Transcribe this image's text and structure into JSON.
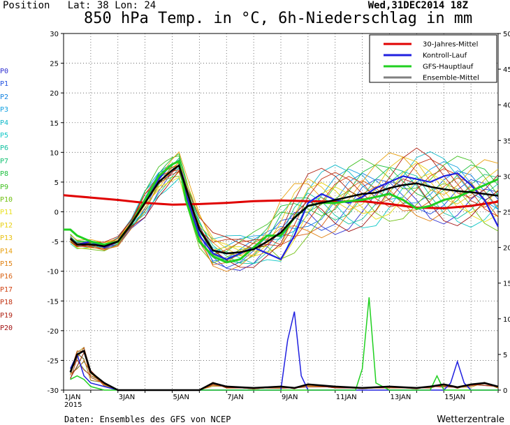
{
  "header": {
    "position_label": "Position",
    "lat_label": "Lat: 38",
    "lon_label": "Lon: 24",
    "datetime": "Wed,31DEC2014 18Z",
    "title": "850 hPa Temp. in °C, 6h-Niederschlag in mm"
  },
  "footer": {
    "source": "Daten: Ensembles des GFS von NCEP",
    "brand": "Wetterzentrale"
  },
  "members": [
    {
      "label": "P0",
      "color": "#3030d0"
    },
    {
      "label": "P1",
      "color": "#2050e0"
    },
    {
      "label": "P2",
      "color": "#1080e0"
    },
    {
      "label": "P3",
      "color": "#10a0e0"
    },
    {
      "label": "P4",
      "color": "#10b8c8"
    },
    {
      "label": "P5",
      "color": "#10c8c8"
    },
    {
      "label": "P6",
      "color": "#10c0a0"
    },
    {
      "label": "P7",
      "color": "#10c070"
    },
    {
      "label": "P8",
      "color": "#20c040"
    },
    {
      "label": "P9",
      "color": "#40c020"
    },
    {
      "label": "P10",
      "color": "#70c010"
    },
    {
      "label": "P11",
      "color": "#e8e020"
    },
    {
      "label": "P12",
      "color": "#e8d010"
    },
    {
      "label": "P13",
      "color": "#e8c010"
    },
    {
      "label": "P14",
      "color": "#e8a010"
    },
    {
      "label": "P15",
      "color": "#e08010"
    },
    {
      "label": "P16",
      "color": "#d86010"
    },
    {
      "label": "P17",
      "color": "#d04010"
    },
    {
      "label": "P18",
      "color": "#c03010"
    },
    {
      "label": "P19",
      "color": "#b02010"
    },
    {
      "label": "P20",
      "color": "#a01010"
    }
  ],
  "chart_data": {
    "type": "line",
    "title": "850 hPa Temp. in °C, 6h-Niederschlag in mm",
    "x_ticks": [
      "1JAN",
      "3JAN",
      "5JAN",
      "7JAN",
      "9JAN",
      "11JAN",
      "13JAN",
      "15JAN"
    ],
    "x_year_label": "2015",
    "x_range_days": [
      0,
      16
    ],
    "y_left_range": [
      -30,
      30
    ],
    "y_left_ticks": [
      30,
      25,
      20,
      15,
      10,
      5,
      0,
      -5,
      -10,
      -15,
      -20,
      -25,
      -30
    ],
    "y_right_range": [
      0,
      50
    ],
    "y_right_ticks": [
      50,
      45,
      40,
      35,
      30,
      25,
      20,
      15,
      10,
      5,
      0
    ],
    "grid": true,
    "legend_position": "top-right",
    "legend": [
      {
        "name": "30-Jahres-Mittel",
        "color": "#e00000"
      },
      {
        "name": "Kontroll-Lauf",
        "color": "#2020e0"
      },
      {
        "name": "GFS-Hauptlauf",
        "color": "#20d020"
      },
      {
        "name": "Ensemble-Mittel",
        "color": "#808080"
      }
    ],
    "climate_mean": {
      "x": [
        0,
        1,
        2,
        3,
        4,
        5,
        6,
        7,
        8,
        9,
        10,
        11,
        12,
        13,
        14,
        15,
        16
      ],
      "y": [
        2.8,
        2.4,
        2.0,
        1.5,
        1.2,
        1.3,
        1.5,
        1.8,
        1.9,
        1.8,
        1.7,
        1.8,
        1.3,
        0.7,
        0.6,
        1.0,
        1.7
      ]
    },
    "ensemble_mean": {
      "x": [
        0.25,
        0.5,
        1,
        1.5,
        2,
        2.5,
        3,
        3.5,
        3.75,
        4,
        4.25,
        4.5,
        5,
        5.5,
        6,
        6.5,
        7,
        7.5,
        8,
        8.5,
        9,
        9.5,
        10,
        10.5,
        11,
        11.5,
        12,
        12.5,
        13,
        13.5,
        14,
        14.5,
        15,
        15.5,
        16
      ],
      "y": [
        -4.5,
        -5.5,
        -5.5,
        -5.8,
        -5.0,
        -2.0,
        1.5,
        5.0,
        6.0,
        7.0,
        7.8,
        4.0,
        -3.0,
        -6.5,
        -7.0,
        -6.8,
        -6.3,
        -5.0,
        -3.5,
        -1.0,
        1.0,
        1.5,
        2.0,
        2.5,
        3.0,
        3.2,
        4.0,
        4.5,
        4.8,
        4.2,
        3.8,
        3.5,
        3.3,
        3.0,
        2.7
      ]
    },
    "control_run": {
      "x": [
        0.25,
        0.5,
        1,
        1.5,
        2,
        2.5,
        3,
        3.5,
        3.75,
        4,
        4.25,
        4.5,
        5,
        5.5,
        6,
        6.5,
        7,
        7.5,
        8,
        8.5,
        9,
        9.5,
        10,
        10.5,
        11,
        11.5,
        12,
        12.5,
        13,
        13.5,
        14,
        14.5,
        15,
        15.5,
        16
      ],
      "y": [
        -4.5,
        -5.5,
        -5.0,
        -6.0,
        -5.0,
        -2.0,
        2.0,
        5.5,
        7.0,
        8.0,
        8.5,
        3.0,
        -4.0,
        -7.0,
        -8.0,
        -7.0,
        -6.0,
        -7.0,
        -8.0,
        -4.0,
        1.5,
        3.0,
        2.0,
        1.5,
        2.5,
        4.0,
        5.0,
        6.0,
        5.5,
        5.0,
        6.0,
        6.5,
        4.5,
        2.0,
        -2.5
      ]
    },
    "main_run": {
      "x": [
        0,
        0.25,
        0.5,
        1,
        1.5,
        2,
        2.5,
        3,
        3.5,
        3.75,
        4,
        4.25,
        4.5,
        5,
        5.5,
        6,
        6.5,
        7,
        7.5,
        8,
        8.5,
        9,
        9.5,
        10,
        10.5,
        11,
        11.5,
        12,
        12.5,
        13,
        13.5,
        14,
        14.5,
        15,
        15.5,
        16
      ],
      "y": [
        -3.0,
        -3.0,
        -4.0,
        -5.0,
        -5.5,
        -5.0,
        -2.0,
        2.0,
        6.0,
        7.0,
        8.0,
        8.5,
        2.0,
        -5.0,
        -7.5,
        -8.5,
        -8.0,
        -6.0,
        -4.0,
        -4.0,
        -1.0,
        1.0,
        1.5,
        1.5,
        1.8,
        2.0,
        2.5,
        3.0,
        2.0,
        0.5,
        1.0,
        2.0,
        2.5,
        3.5,
        4.5,
        5.5
      ]
    },
    "precip_mean_mm": {
      "x": [
        0.25,
        0.5,
        0.75,
        1,
        1.5,
        2,
        3,
        4,
        5,
        5.5,
        6,
        7,
        8,
        8.5,
        9,
        10,
        11,
        12,
        13,
        13.5,
        14,
        14.5,
        15,
        15.5,
        16
      ],
      "y": [
        2.5,
        5.0,
        5.5,
        2.5,
        1.0,
        0.0,
        0.0,
        0.0,
        0.0,
        1.0,
        0.5,
        0.3,
        0.5,
        0.3,
        0.8,
        0.5,
        0.3,
        0.5,
        0.3,
        0.5,
        0.8,
        0.4,
        0.8,
        1.0,
        0.5
      ]
    },
    "precip_control_mm": {
      "x": [
        0.25,
        0.5,
        0.75,
        1,
        1.5,
        2,
        8,
        8.25,
        8.5,
        8.75,
        9,
        14,
        14.25,
        14.5,
        14.75,
        15,
        16
      ],
      "y": [
        3.0,
        5.0,
        2.0,
        1.0,
        0.5,
        0.0,
        0.0,
        7.0,
        11.0,
        2.0,
        0.0,
        0.0,
        1.0,
        4.0,
        1.0,
        0.0,
        0.0
      ]
    },
    "precip_main_mm": {
      "x": [
        0.25,
        0.5,
        0.75,
        1,
        1.5,
        2,
        10.75,
        11,
        11.25,
        11.5,
        12,
        13.5,
        13.75,
        14,
        14.25,
        16
      ],
      "y": [
        1.5,
        2.0,
        1.5,
        0.5,
        0.0,
        0.0,
        0.0,
        3.0,
        13.0,
        1.0,
        0.0,
        0.0,
        2.0,
        0.0,
        0.0,
        0.0
      ]
    }
  }
}
